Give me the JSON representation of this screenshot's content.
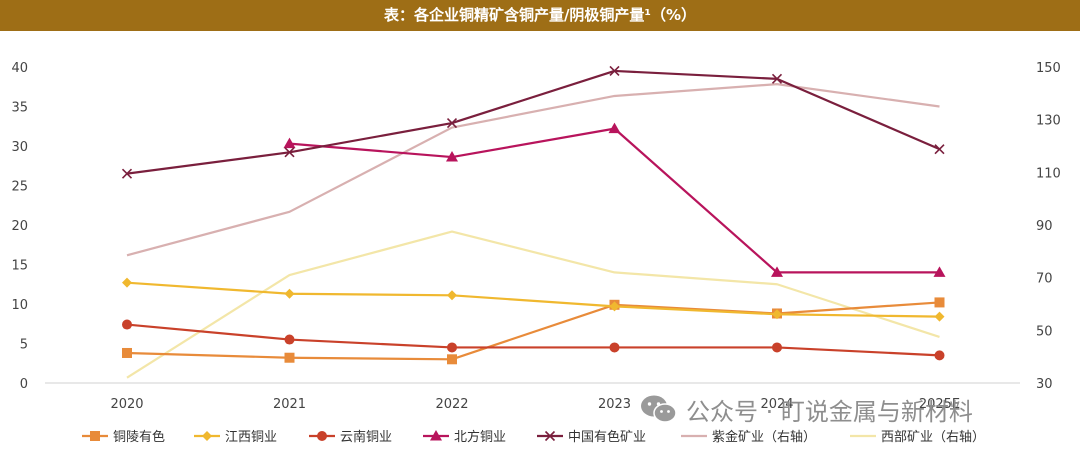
{
  "header": {
    "title": "表：各企业铜精矿含铜产量/阴极铜产量¹（%）"
  },
  "watermark": {
    "text": "公众号 · 盯说金属与新材料",
    "icon": "wechat-icon"
  },
  "chart_data": {
    "type": "line",
    "title": "表：各企业铜精矿含铜产量/阴极铜产量¹（%）",
    "categories": [
      "2020",
      "2021",
      "2022",
      "2023",
      "2024",
      "2025E"
    ],
    "y_left": {
      "min": 0,
      "max": 40,
      "step": 5,
      "ticks": [
        "0",
        "5",
        "10",
        "15",
        "20",
        "25",
        "30",
        "35",
        "40"
      ]
    },
    "y_right": {
      "min": 30,
      "max": 150,
      "step": 20,
      "ticks": [
        "30",
        "50",
        "70",
        "90",
        "110",
        "130",
        "150"
      ]
    },
    "grid": false,
    "legend_position": "bottom",
    "series": [
      {
        "name": "铜陵有色",
        "axis": "left",
        "marker": "square",
        "color": "#e88b3a",
        "values": [
          3.8,
          3.2,
          3.0,
          9.9,
          8.8,
          10.2
        ]
      },
      {
        "name": "江西铜业",
        "axis": "left",
        "marker": "diamond",
        "color": "#f0b82f",
        "values": [
          12.7,
          11.3,
          11.1,
          9.7,
          8.7,
          8.4
        ]
      },
      {
        "name": "云南铜业",
        "axis": "left",
        "marker": "circle",
        "color": "#c9412a",
        "values": [
          7.4,
          5.5,
          4.5,
          4.5,
          4.5,
          3.5
        ]
      },
      {
        "name": "北方铜业",
        "axis": "left",
        "marker": "triangle",
        "color": "#b8145c",
        "values": [
          null,
          30.3,
          28.6,
          32.2,
          14.0,
          14.0
        ]
      },
      {
        "name": "中国有色矿业",
        "axis": "left",
        "marker": "x",
        "color": "#7a1f3d",
        "values": [
          26.5,
          29.2,
          32.9,
          39.5,
          38.5,
          29.6
        ]
      },
      {
        "name": "紫金矿业（右轴）",
        "axis": "right",
        "marker": "none",
        "color": "#d8b0b0",
        "values": [
          78.5,
          95,
          127,
          139,
          143.5,
          135
        ]
      },
      {
        "name": "西部矿业（右轴）",
        "axis": "right",
        "marker": "none",
        "color": "#f3e6a8",
        "values": [
          32,
          71,
          87.5,
          72,
          67.5,
          47.5
        ]
      }
    ]
  }
}
